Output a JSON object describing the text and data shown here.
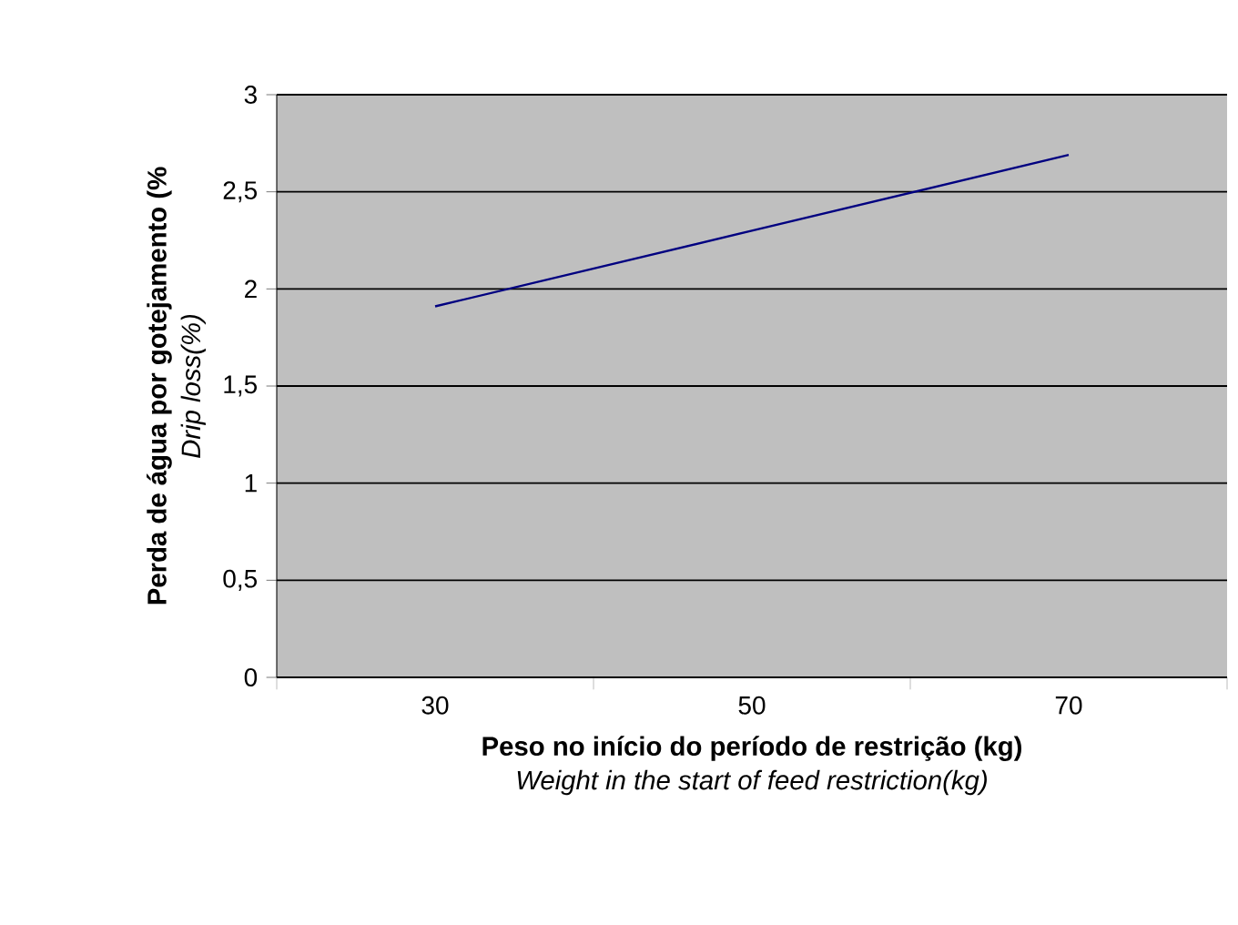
{
  "chart_data": {
    "type": "line",
    "xlabel": "**Peso no início do período de restrição (kg)**\n*Weight in the start of feed restriction(kg)*",
    "ylabel": "**Perda de água por gotejamento (%**\n*Drip loss(%)*",
    "categories": [
      "30",
      "50",
      "70"
    ],
    "series": [
      {
        "color": "#000080",
        "values": [
          1.91,
          2.3,
          2.69
        ]
      }
    ],
    "ylim": [
      0,
      3
    ],
    "yticks": [
      0,
      {
        "value": 0.5,
        "label": "0,5"
      },
      1,
      {
        "value": 1.5,
        "label": "1,5"
      },
      2,
      {
        "value": 2.5,
        "label": "2,5"
      },
      3
    ],
    "grid": "y",
    "marker": "none",
    "line_style": "solid"
  }
}
